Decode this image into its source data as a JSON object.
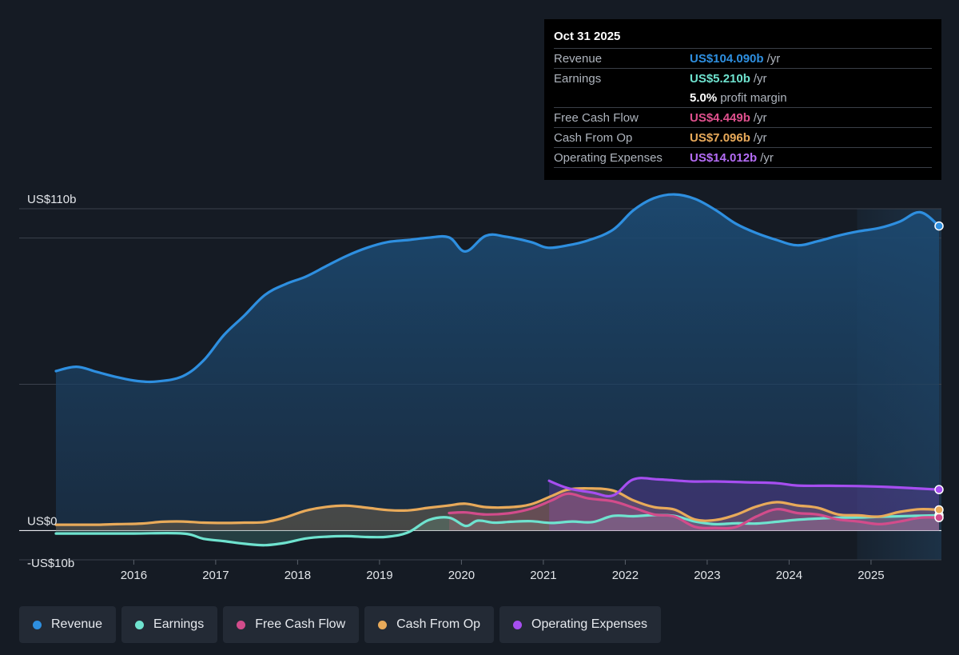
{
  "tooltip": {
    "date": "Oct 31 2025",
    "rows": [
      {
        "label": "Revenue",
        "value": "US$104.090b",
        "unit": "/yr",
        "color": "#2e8fe0"
      },
      {
        "label": "Earnings",
        "value": "US$5.210b",
        "unit": "/yr",
        "color": "#6fe3cf"
      },
      {
        "label": "",
        "value": "5.0%",
        "unit": "profit margin",
        "color": "#ffffff"
      },
      {
        "label": "Free Cash Flow",
        "value": "US$4.449b",
        "unit": "/yr",
        "color": "#e0508e"
      },
      {
        "label": "Cash From Op",
        "value": "US$7.096b",
        "unit": "/yr",
        "color": "#e8aa5a"
      },
      {
        "label": "Operating Expenses",
        "value": "US$14.012b",
        "unit": "/yr",
        "color": "#a64ef0"
      }
    ]
  },
  "legend": [
    {
      "label": "Revenue",
      "color": "#2e8fe0"
    },
    {
      "label": "Earnings",
      "color": "#6fe3cf"
    },
    {
      "label": "Free Cash Flow",
      "color": "#d24c8b"
    },
    {
      "label": "Cash From Op",
      "color": "#e8aa5a"
    },
    {
      "label": "Operating Expenses",
      "color": "#a64ef0"
    }
  ],
  "chart_data": {
    "type": "area",
    "y_tick_labels": [
      "US$110b",
      "US$0",
      "-US$10b"
    ],
    "ylim": [
      -10,
      110
    ],
    "xlim": [
      2015.05,
      2025.83
    ],
    "x_tick_labels": [
      "2016",
      "2017",
      "2018",
      "2019",
      "2020",
      "2021",
      "2022",
      "2023",
      "2024",
      "2025"
    ],
    "grid": true,
    "legend_position": "bottom",
    "highlight_from": 2024.83,
    "series": [
      {
        "name": "Revenue",
        "color": "#2e8fe0",
        "x": [
          2015.05,
          2015.3,
          2015.55,
          2015.8,
          2016.05,
          2016.3,
          2016.6,
          2016.85,
          2017.1,
          2017.35,
          2017.6,
          2017.85,
          2018.1,
          2018.35,
          2018.6,
          2018.85,
          2019.1,
          2019.35,
          2019.6,
          2019.85,
          2020.05,
          2020.3,
          2020.55,
          2020.85,
          2021.05,
          2021.3,
          2021.55,
          2021.85,
          2022.1,
          2022.35,
          2022.6,
          2022.85,
          2023.1,
          2023.35,
          2023.6,
          2023.85,
          2024.1,
          2024.35,
          2024.6,
          2024.85,
          2025.1,
          2025.35,
          2025.6,
          2025.83
        ],
        "values": [
          54.5,
          56.0,
          54.2,
          52.4,
          51.1,
          51.0,
          52.8,
          58.1,
          66.8,
          73.5,
          80.5,
          84.2,
          86.8,
          90.4,
          93.9,
          96.7,
          98.6,
          99.3,
          100.1,
          100.2,
          95.4,
          100.8,
          100.4,
          98.6,
          96.7,
          97.5,
          99.2,
          102.8,
          109.5,
          113.6,
          114.9,
          113.4,
          109.6,
          104.9,
          101.7,
          99.3,
          97.5,
          98.9,
          100.8,
          102.3,
          103.4,
          105.6,
          108.8,
          104.09
        ]
      },
      {
        "name": "Earnings",
        "color": "#6fe3cf",
        "x": [
          2015.05,
          2015.5,
          2016.0,
          2016.6,
          2016.85,
          2017.1,
          2017.35,
          2017.6,
          2017.85,
          2018.1,
          2018.35,
          2018.6,
          2018.85,
          2019.1,
          2019.35,
          2019.6,
          2019.85,
          2020.05,
          2020.2,
          2020.4,
          2020.6,
          2020.85,
          2021.1,
          2021.35,
          2021.6,
          2021.85,
          2022.1,
          2022.35,
          2022.6,
          2022.85,
          2023.1,
          2023.35,
          2023.6,
          2023.85,
          2024.1,
          2024.35,
          2024.6,
          2024.85,
          2025.1,
          2025.35,
          2025.6,
          2025.83
        ],
        "values": [
          -1.0,
          -1.0,
          -1.0,
          -1.0,
          -2.8,
          -3.6,
          -4.5,
          -5.0,
          -4.2,
          -2.7,
          -2.1,
          -1.9,
          -2.2,
          -2.1,
          -0.6,
          3.6,
          4.4,
          1.6,
          3.4,
          2.7,
          3.0,
          3.2,
          2.6,
          3.1,
          2.9,
          5.0,
          4.9,
          5.3,
          5.0,
          3.1,
          2.2,
          2.5,
          2.4,
          3.0,
          3.7,
          4.1,
          4.4,
          4.5,
          4.7,
          4.9,
          5.1,
          5.21
        ]
      },
      {
        "name": "Free Cash Flow",
        "color": "#d24c8b",
        "x": [
          2019.85,
          2020.05,
          2020.3,
          2020.6,
          2020.85,
          2021.1,
          2021.3,
          2021.55,
          2021.85,
          2022.1,
          2022.35,
          2022.6,
          2022.85,
          2023.1,
          2023.35,
          2023.6,
          2023.85,
          2024.1,
          2024.35,
          2024.6,
          2024.85,
          2025.1,
          2025.35,
          2025.6,
          2025.83
        ],
        "values": [
          6.0,
          6.2,
          5.5,
          6.0,
          7.5,
          10.3,
          12.6,
          11.0,
          10.0,
          7.8,
          5.5,
          4.8,
          1.3,
          0.9,
          1.2,
          4.8,
          7.3,
          6.0,
          5.5,
          3.8,
          3.1,
          2.2,
          3.1,
          4.4,
          4.449
        ]
      },
      {
        "name": "Cash From Op",
        "color": "#e8aa5a",
        "x": [
          2015.05,
          2015.3,
          2015.55,
          2015.8,
          2016.1,
          2016.35,
          2016.6,
          2016.85,
          2017.1,
          2017.35,
          2017.6,
          2017.85,
          2018.1,
          2018.35,
          2018.6,
          2018.85,
          2019.1,
          2019.35,
          2019.6,
          2019.85,
          2020.05,
          2020.3,
          2020.6,
          2020.85,
          2021.1,
          2021.3,
          2021.55,
          2021.85,
          2022.1,
          2022.35,
          2022.6,
          2022.85,
          2023.1,
          2023.35,
          2023.6,
          2023.85,
          2024.1,
          2024.35,
          2024.6,
          2024.85,
          2025.1,
          2025.35,
          2025.6,
          2025.83
        ],
        "values": [
          2.0,
          2.0,
          2.0,
          2.2,
          2.4,
          3.0,
          3.1,
          2.7,
          2.6,
          2.7,
          2.9,
          4.5,
          6.8,
          8.1,
          8.5,
          7.8,
          7.0,
          6.9,
          7.8,
          8.6,
          9.2,
          8.0,
          8.0,
          9.0,
          11.8,
          14.0,
          14.4,
          13.7,
          10.3,
          8.0,
          7.2,
          3.8,
          3.6,
          5.4,
          8.2,
          9.7,
          8.6,
          7.8,
          5.5,
          5.2,
          4.8,
          6.4,
          7.3,
          7.096
        ]
      },
      {
        "name": "Operating Expenses",
        "color": "#a64ef0",
        "x": [
          2021.07,
          2021.3,
          2021.6,
          2021.85,
          2022.1,
          2022.4,
          2022.8,
          2023.1,
          2023.5,
          2023.85,
          2024.1,
          2024.5,
          2024.85,
          2025.2,
          2025.5,
          2025.83
        ],
        "values": [
          17.0,
          14.5,
          13.0,
          12.0,
          17.5,
          17.5,
          16.8,
          16.8,
          16.5,
          16.2,
          15.4,
          15.3,
          15.2,
          14.9,
          14.5,
          14.012
        ]
      }
    ]
  }
}
